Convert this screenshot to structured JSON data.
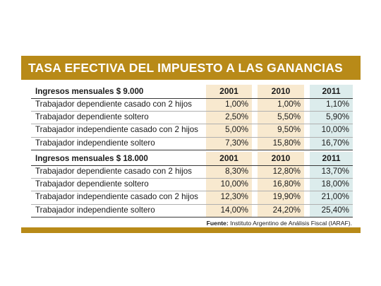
{
  "title": "TASA EFECTIVA DEL IMPUESTO A LAS GANANCIAS",
  "source_label": "Fuente:",
  "source_text": "Instituto Argentino de Análisis Fiscal (IARAF).",
  "chart_data": {
    "type": "table",
    "title": "TASA EFECTIVA DEL IMPUESTO A LAS GANANCIAS",
    "columns": [
      "2001",
      "2010",
      "2011"
    ],
    "sections": [
      {
        "header": "Ingresos mensuales $ 9.000",
        "columns": [
          "2001",
          "2010",
          "2011"
        ],
        "rows": [
          {
            "label": "Trabajador dependiente casado con 2 hijos",
            "values": [
              "1,00%",
              "1,00%",
              "1,10%"
            ]
          },
          {
            "label": "Trabajador dependiente soltero",
            "values": [
              "2,50%",
              "5,50%",
              "5,90%"
            ]
          },
          {
            "label": "Trabajador independiente casado con 2 hijos",
            "values": [
              "5,00%",
              "9,50%",
              "10,00%"
            ]
          },
          {
            "label": "Trabajador independiente soltero",
            "values": [
              "7,30%",
              "15,80%",
              "16,70%"
            ]
          }
        ]
      },
      {
        "header": "Ingresos mensuales $ 18.000",
        "columns": [
          "2001",
          "2010",
          "2011"
        ],
        "rows": [
          {
            "label": "Trabajador dependiente casado con 2 hijos",
            "values": [
              "8,30%",
              "12,80%",
              "13,70%"
            ]
          },
          {
            "label": "Trabajador dependiente soltero",
            "values": [
              "10,00%",
              "16,80%",
              "18,00%"
            ]
          },
          {
            "label": "Trabajador independiente casado con 2 hijos",
            "values": [
              "12,30%",
              "19,90%",
              "21,00%"
            ]
          },
          {
            "label": "Trabajador independiente soltero",
            "values": [
              "14,00%",
              "24,20%",
              "25,40%"
            ]
          }
        ]
      }
    ]
  },
  "colors": {
    "accent": "#b88a18",
    "col_2001_2010_bg": "#f8e9cf",
    "col_2011_bg": "#dcecec"
  }
}
